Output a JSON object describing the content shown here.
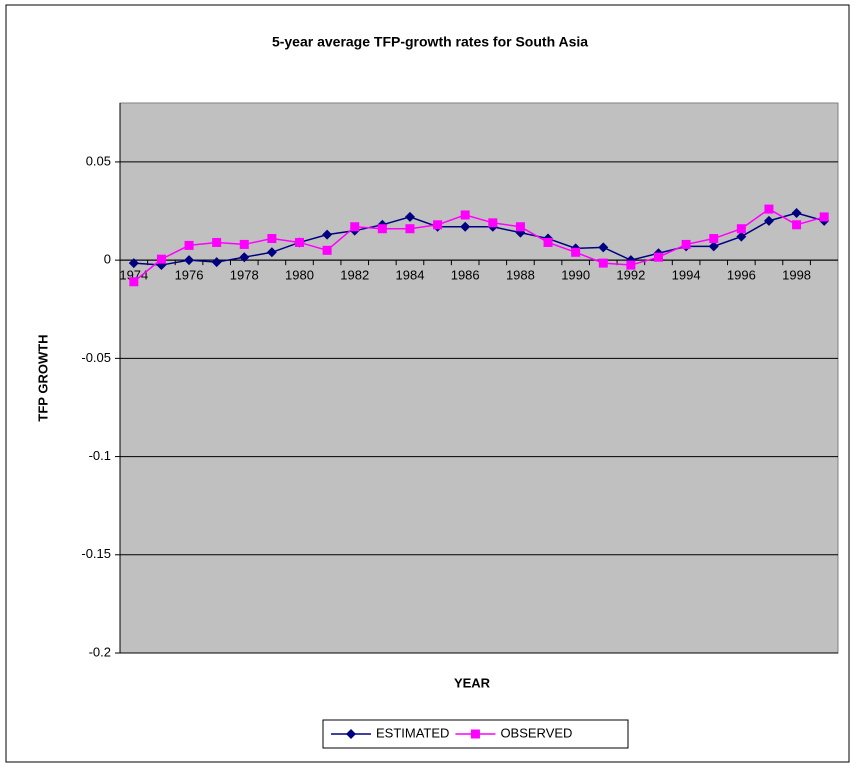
{
  "chart_data": {
    "type": "line",
    "title": "5-year average TFP-growth rates for South Asia",
    "x_label": "YEAR",
    "y_label": "TFP GROWTH",
    "categories": [
      1974,
      null,
      1976,
      null,
      1978,
      null,
      1980,
      null,
      1982,
      null,
      1984,
      null,
      1986,
      null,
      1988,
      null,
      1990,
      null,
      1992,
      null,
      1994,
      null,
      1996,
      null,
      1998,
      null
    ],
    "series": [
      {
        "name": "ESTIMATED",
        "color": "#000080",
        "marker": "diamond",
        "values": [
          -0.0015,
          -0.0025,
          0,
          -0.001,
          0.0015,
          0.004,
          0.009,
          0.013,
          0.015,
          0.018,
          0.022,
          0.017,
          0.017,
          0.017,
          0.014,
          0.011,
          0.006,
          0.0065,
          0,
          0.0035,
          0.007,
          0.007,
          0.012,
          0.02,
          0.024,
          0.02
        ]
      },
      {
        "name": "OBSERVED",
        "color": "#ff00ff",
        "marker": "square",
        "values": [
          -0.011,
          0.0005,
          0.0075,
          0.009,
          0.008,
          0.011,
          0.009,
          0.005,
          0.017,
          0.016,
          0.016,
          0.018,
          0.023,
          0.019,
          0.017,
          0.009,
          0.004,
          -0.0015,
          -0.0025,
          0.0015,
          0.008,
          0.011,
          0.016,
          0.026,
          0.018,
          0.022
        ]
      }
    ],
    "ylim": [
      -0.2,
      0.08
    ],
    "yticks": [
      -0.2,
      -0.15,
      -0.1,
      -0.05,
      0,
      0.05
    ],
    "grid": true,
    "plot_background": "#c0c0c0",
    "legend": "bottom"
  }
}
